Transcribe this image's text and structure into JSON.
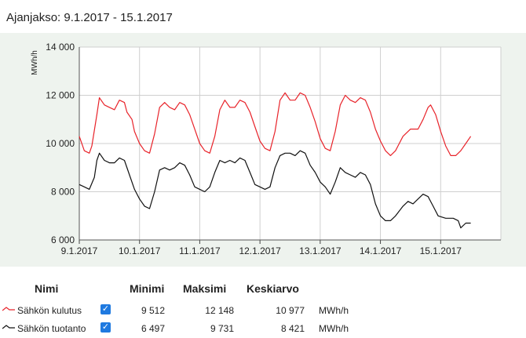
{
  "period_label": "Ajanjakso: 9.1.2017 - 15.1.2017",
  "chart_data": {
    "type": "line",
    "ylabel": "MWh/h",
    "ylim": [
      6000,
      14000
    ],
    "yticks": [
      6000,
      8000,
      10000,
      12000,
      14000
    ],
    "ytick_labels": [
      "6 000",
      "8 000",
      "10 000",
      "12 000",
      "14 000"
    ],
    "xlim_days": [
      9,
      16
    ],
    "x_tick_labels": [
      "9.1.2017",
      "10.1.2017",
      "11.1.2017",
      "12.1.2017",
      "13.1.2017",
      "14.1.2017",
      "15.1.2017"
    ],
    "grid": true,
    "series": [
      {
        "name": "Sähkön kulutus",
        "color": "#e8232a",
        "points": [
          [
            "9.1.2017 00:00",
            10300
          ],
          [
            "9.1.2017 02:00",
            9700
          ],
          [
            "9.1.2017 04:00",
            9600
          ],
          [
            "9.1.2017 05:00",
            9900
          ],
          [
            "9.1.2017 07:00",
            11200
          ],
          [
            "9.1.2017 08:00",
            11900
          ],
          [
            "9.1.2017 10:00",
            11600
          ],
          [
            "9.1.2017 12:00",
            11500
          ],
          [
            "9.1.2017 14:00",
            11400
          ],
          [
            "9.1.2017 16:00",
            11800
          ],
          [
            "9.1.2017 18:00",
            11700
          ],
          [
            "9.1.2017 19:00",
            11300
          ],
          [
            "9.1.2017 21:00",
            11000
          ],
          [
            "9.1.2017 22:00",
            10500
          ],
          [
            "10.1.2017 00:00",
            10000
          ],
          [
            "10.1.2017 02:00",
            9700
          ],
          [
            "10.1.2017 04:00",
            9600
          ],
          [
            "10.1.2017 06:00",
            10400
          ],
          [
            "10.1.2017 08:00",
            11500
          ],
          [
            "10.1.2017 10:00",
            11700
          ],
          [
            "10.1.2017 12:00",
            11500
          ],
          [
            "10.1.2017 14:00",
            11400
          ],
          [
            "10.1.2017 16:00",
            11700
          ],
          [
            "10.1.2017 18:00",
            11600
          ],
          [
            "10.1.2017 20:00",
            11200
          ],
          [
            "10.1.2017 22:00",
            10600
          ],
          [
            "11.1.2017 00:00",
            10000
          ],
          [
            "11.1.2017 02:00",
            9700
          ],
          [
            "11.1.2017 04:00",
            9600
          ],
          [
            "11.1.2017 06:00",
            10300
          ],
          [
            "11.1.2017 08:00",
            11400
          ],
          [
            "11.1.2017 10:00",
            11800
          ],
          [
            "11.1.2017 12:00",
            11500
          ],
          [
            "11.1.2017 14:00",
            11500
          ],
          [
            "11.1.2017 16:00",
            11800
          ],
          [
            "11.1.2017 18:00",
            11700
          ],
          [
            "11.1.2017 20:00",
            11300
          ],
          [
            "11.1.2017 22:00",
            10700
          ],
          [
            "12.1.2017 00:00",
            10100
          ],
          [
            "12.1.2017 02:00",
            9800
          ],
          [
            "12.1.2017 04:00",
            9700
          ],
          [
            "12.1.2017 06:00",
            10500
          ],
          [
            "12.1.2017 08:00",
            11800
          ],
          [
            "12.1.2017 10:00",
            12100
          ],
          [
            "12.1.2017 12:00",
            11800
          ],
          [
            "12.1.2017 14:00",
            11800
          ],
          [
            "12.1.2017 16:00",
            12100
          ],
          [
            "12.1.2017 18:00",
            12000
          ],
          [
            "12.1.2017 20:00",
            11500
          ],
          [
            "12.1.2017 22:00",
            10900
          ],
          [
            "13.1.2017 00:00",
            10200
          ],
          [
            "13.1.2017 02:00",
            9800
          ],
          [
            "13.1.2017 04:00",
            9700
          ],
          [
            "13.1.2017 06:00",
            10500
          ],
          [
            "13.1.2017 08:00",
            11600
          ],
          [
            "13.1.2017 10:00",
            12000
          ],
          [
            "13.1.2017 12:00",
            11800
          ],
          [
            "13.1.2017 14:00",
            11700
          ],
          [
            "13.1.2017 16:00",
            11900
          ],
          [
            "13.1.2017 18:00",
            11800
          ],
          [
            "13.1.2017 20:00",
            11300
          ],
          [
            "13.1.2017 22:00",
            10600
          ],
          [
            "14.1.2017 00:00",
            10100
          ],
          [
            "14.1.2017 02:00",
            9700
          ],
          [
            "14.1.2017 04:00",
            9500
          ],
          [
            "14.1.2017 06:00",
            9700
          ],
          [
            "14.1.2017 09:00",
            10300
          ],
          [
            "14.1.2017 12:00",
            10600
          ],
          [
            "14.1.2017 15:00",
            10600
          ],
          [
            "14.1.2017 17:00",
            11000
          ],
          [
            "14.1.2017 19:00",
            11500
          ],
          [
            "14.1.2017 20:00",
            11600
          ],
          [
            "14.1.2017 22:00",
            11200
          ],
          [
            "15.1.2017 00:00",
            10500
          ],
          [
            "15.1.2017 02:00",
            9900
          ],
          [
            "15.1.2017 04:00",
            9500
          ],
          [
            "15.1.2017 06:00",
            9500
          ],
          [
            "15.1.2017 08:00",
            9700
          ],
          [
            "15.1.2017 10:00",
            10000
          ],
          [
            "15.1.2017 12:00",
            10300
          ]
        ]
      },
      {
        "name": "Sähkön tuotanto",
        "color": "#111111",
        "points": [
          [
            "9.1.2017 00:00",
            8300
          ],
          [
            "9.1.2017 02:00",
            8200
          ],
          [
            "9.1.2017 04:00",
            8100
          ],
          [
            "9.1.2017 06:00",
            8600
          ],
          [
            "9.1.2017 07:00",
            9300
          ],
          [
            "9.1.2017 08:00",
            9600
          ],
          [
            "9.1.2017 10:00",
            9300
          ],
          [
            "9.1.2017 12:00",
            9200
          ],
          [
            "9.1.2017 14:00",
            9200
          ],
          [
            "9.1.2017 16:00",
            9400
          ],
          [
            "9.1.2017 18:00",
            9300
          ],
          [
            "9.1.2017 20:00",
            8700
          ],
          [
            "9.1.2017 22:00",
            8100
          ],
          [
            "10.1.2017 00:00",
            7700
          ],
          [
            "10.1.2017 02:00",
            7400
          ],
          [
            "10.1.2017 04:00",
            7300
          ],
          [
            "10.1.2017 06:00",
            8000
          ],
          [
            "10.1.2017 08:00",
            8900
          ],
          [
            "10.1.2017 10:00",
            9000
          ],
          [
            "10.1.2017 12:00",
            8900
          ],
          [
            "10.1.2017 14:00",
            9000
          ],
          [
            "10.1.2017 16:00",
            9200
          ],
          [
            "10.1.2017 18:00",
            9100
          ],
          [
            "10.1.2017 20:00",
            8700
          ],
          [
            "10.1.2017 22:00",
            8200
          ],
          [
            "11.1.2017 00:00",
            8100
          ],
          [
            "11.1.2017 02:00",
            8000
          ],
          [
            "11.1.2017 04:00",
            8200
          ],
          [
            "11.1.2017 06:00",
            8800
          ],
          [
            "11.1.2017 08:00",
            9300
          ],
          [
            "11.1.2017 10:00",
            9200
          ],
          [
            "11.1.2017 12:00",
            9300
          ],
          [
            "11.1.2017 14:00",
            9200
          ],
          [
            "11.1.2017 16:00",
            9400
          ],
          [
            "11.1.2017 18:00",
            9300
          ],
          [
            "11.1.2017 20:00",
            8800
          ],
          [
            "11.1.2017 22:00",
            8300
          ],
          [
            "12.1.2017 00:00",
            8200
          ],
          [
            "12.1.2017 02:00",
            8100
          ],
          [
            "12.1.2017 04:00",
            8200
          ],
          [
            "12.1.2017 06:00",
            9000
          ],
          [
            "12.1.2017 08:00",
            9500
          ],
          [
            "12.1.2017 10:00",
            9600
          ],
          [
            "12.1.2017 12:00",
            9600
          ],
          [
            "12.1.2017 14:00",
            9500
          ],
          [
            "12.1.2017 16:00",
            9700
          ],
          [
            "12.1.2017 18:00",
            9600
          ],
          [
            "12.1.2017 20:00",
            9100
          ],
          [
            "12.1.2017 22:00",
            8800
          ],
          [
            "13.1.2017 00:00",
            8400
          ],
          [
            "13.1.2017 02:00",
            8200
          ],
          [
            "13.1.2017 04:00",
            7900
          ],
          [
            "13.1.2017 06:00",
            8400
          ],
          [
            "13.1.2017 08:00",
            9000
          ],
          [
            "13.1.2017 10:00",
            8800
          ],
          [
            "13.1.2017 12:00",
            8700
          ],
          [
            "13.1.2017 14:00",
            8600
          ],
          [
            "13.1.2017 16:00",
            8800
          ],
          [
            "13.1.2017 18:00",
            8700
          ],
          [
            "13.1.2017 20:00",
            8300
          ],
          [
            "13.1.2017 22:00",
            7500
          ],
          [
            "14.1.2017 00:00",
            7000
          ],
          [
            "14.1.2017 02:00",
            6800
          ],
          [
            "14.1.2017 04:00",
            6800
          ],
          [
            "14.1.2017 06:00",
            7000
          ],
          [
            "14.1.2017 09:00",
            7400
          ],
          [
            "14.1.2017 11:00",
            7600
          ],
          [
            "14.1.2017 13:00",
            7500
          ],
          [
            "14.1.2017 15:00",
            7700
          ],
          [
            "14.1.2017 17:00",
            7900
          ],
          [
            "14.1.2017 19:00",
            7800
          ],
          [
            "14.1.2017 21:00",
            7400
          ],
          [
            "14.1.2017 23:00",
            7000
          ],
          [
            "15.1.2017 02:00",
            6900
          ],
          [
            "15.1.2017 05:00",
            6900
          ],
          [
            "15.1.2017 07:00",
            6800
          ],
          [
            "15.1.2017 08:00",
            6500
          ],
          [
            "15.1.2017 10:00",
            6700
          ],
          [
            "15.1.2017 12:00",
            6700
          ]
        ]
      }
    ]
  },
  "table": {
    "headers": {
      "name": "Nimi",
      "min": "Minimi",
      "max": "Maksimi",
      "avg": "Keskiarvo"
    },
    "rows": [
      {
        "name": "Sähkön kulutus",
        "color": "#e8232a",
        "checked": true,
        "min": "9 512",
        "max": "12 148",
        "avg": "10 977",
        "unit": "MWh/h"
      },
      {
        "name": "Sähkön tuotanto",
        "color": "#111111",
        "checked": true,
        "min": "6 497",
        "max": "9 731",
        "avg": "8 421",
        "unit": "MWh/h"
      }
    ]
  }
}
